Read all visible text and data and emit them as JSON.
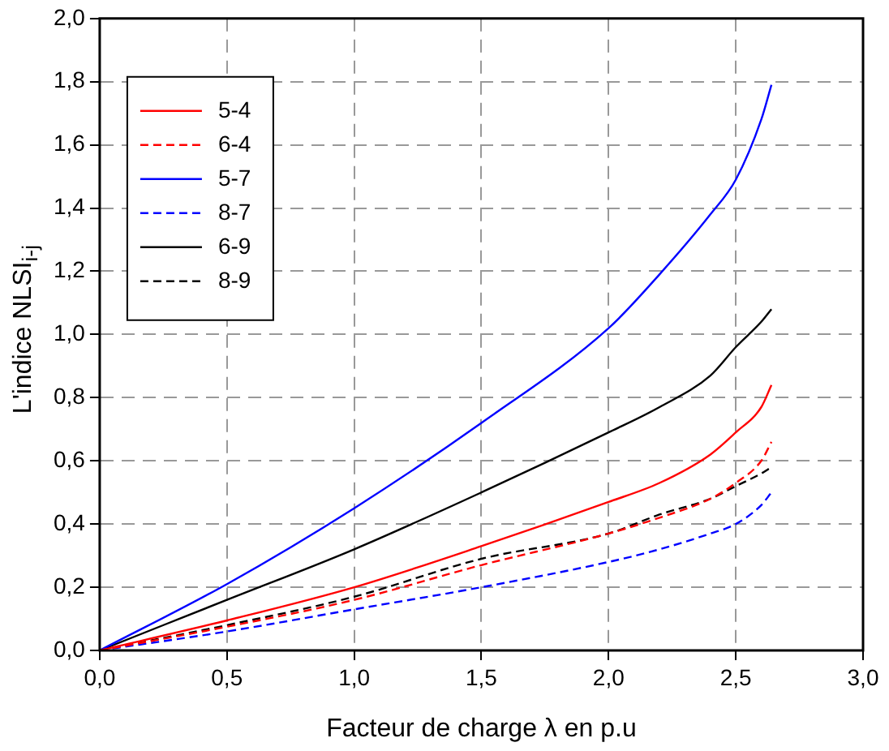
{
  "chart_data": {
    "type": "line",
    "xlabel": "Facteur de charge λ en p.u",
    "ylabel": "L'indice NLSI$_{i-j}$",
    "xlim": [
      0,
      3
    ],
    "xticks": [
      {
        "value": 0,
        "label": "0,0"
      },
      {
        "value": 0.5,
        "label": "0,5"
      },
      {
        "value": 1,
        "label": "1,0"
      },
      {
        "value": 1.5,
        "label": "1,5"
      },
      {
        "value": 2,
        "label": "2,0"
      },
      {
        "value": 2.5,
        "label": "2,5"
      },
      {
        "value": 3,
        "label": "3,0"
      }
    ],
    "ylim": [
      0,
      2
    ],
    "yticks": [
      {
        "value": 0,
        "label": "0,0"
      },
      {
        "value": 0.2,
        "label": "0,2"
      },
      {
        "value": 0.4,
        "label": "0,4"
      },
      {
        "value": 0.6,
        "label": "0,6"
      },
      {
        "value": 0.8,
        "label": "0,8"
      },
      {
        "value": 1,
        "label": "1,0"
      },
      {
        "value": 1.2,
        "label": "1,2"
      },
      {
        "value": 1.4,
        "label": "1,4"
      },
      {
        "value": 1.6,
        "label": "1,6"
      },
      {
        "value": 1.8,
        "label": "1,8"
      },
      {
        "value": 2,
        "label": "2,0"
      }
    ],
    "grid": true,
    "legend": "top left",
    "marker": "none",
    "x": [
      0,
      0.5,
      1,
      1.5,
      2,
      2.2,
      2.4,
      2.5,
      2.6,
      2.64
    ],
    "series": [
      {
        "name": "5-4",
        "color": "#ff0000",
        "line_style": "solid",
        "values": [
          0,
          0.095,
          0.2,
          0.33,
          0.47,
          0.53,
          0.62,
          0.69,
          0.77,
          0.84
        ]
      },
      {
        "name": "6-4",
        "color": "#ff0000",
        "line_style": "dashed",
        "values": [
          0,
          0.075,
          0.16,
          0.27,
          0.37,
          0.42,
          0.48,
          0.53,
          0.6,
          0.66
        ]
      },
      {
        "name": "5-7",
        "color": "#0000ff",
        "line_style": "solid",
        "values": [
          0,
          0.21,
          0.45,
          0.72,
          1.02,
          1.19,
          1.38,
          1.49,
          1.68,
          1.79
        ]
      },
      {
        "name": "8-7",
        "color": "#0000ff",
        "line_style": "dashed",
        "values": [
          0,
          0.06,
          0.13,
          0.2,
          0.28,
          0.32,
          0.37,
          0.4,
          0.46,
          0.5
        ]
      },
      {
        "name": "6-9",
        "color": "#000000",
        "line_style": "solid",
        "values": [
          0,
          0.16,
          0.32,
          0.5,
          0.69,
          0.77,
          0.87,
          0.96,
          1.04,
          1.08
        ]
      },
      {
        "name": "8-9",
        "color": "#000000",
        "line_style": "dashed",
        "values": [
          0,
          0.08,
          0.17,
          0.29,
          0.37,
          0.43,
          0.48,
          0.52,
          0.56,
          0.58
        ]
      }
    ]
  }
}
